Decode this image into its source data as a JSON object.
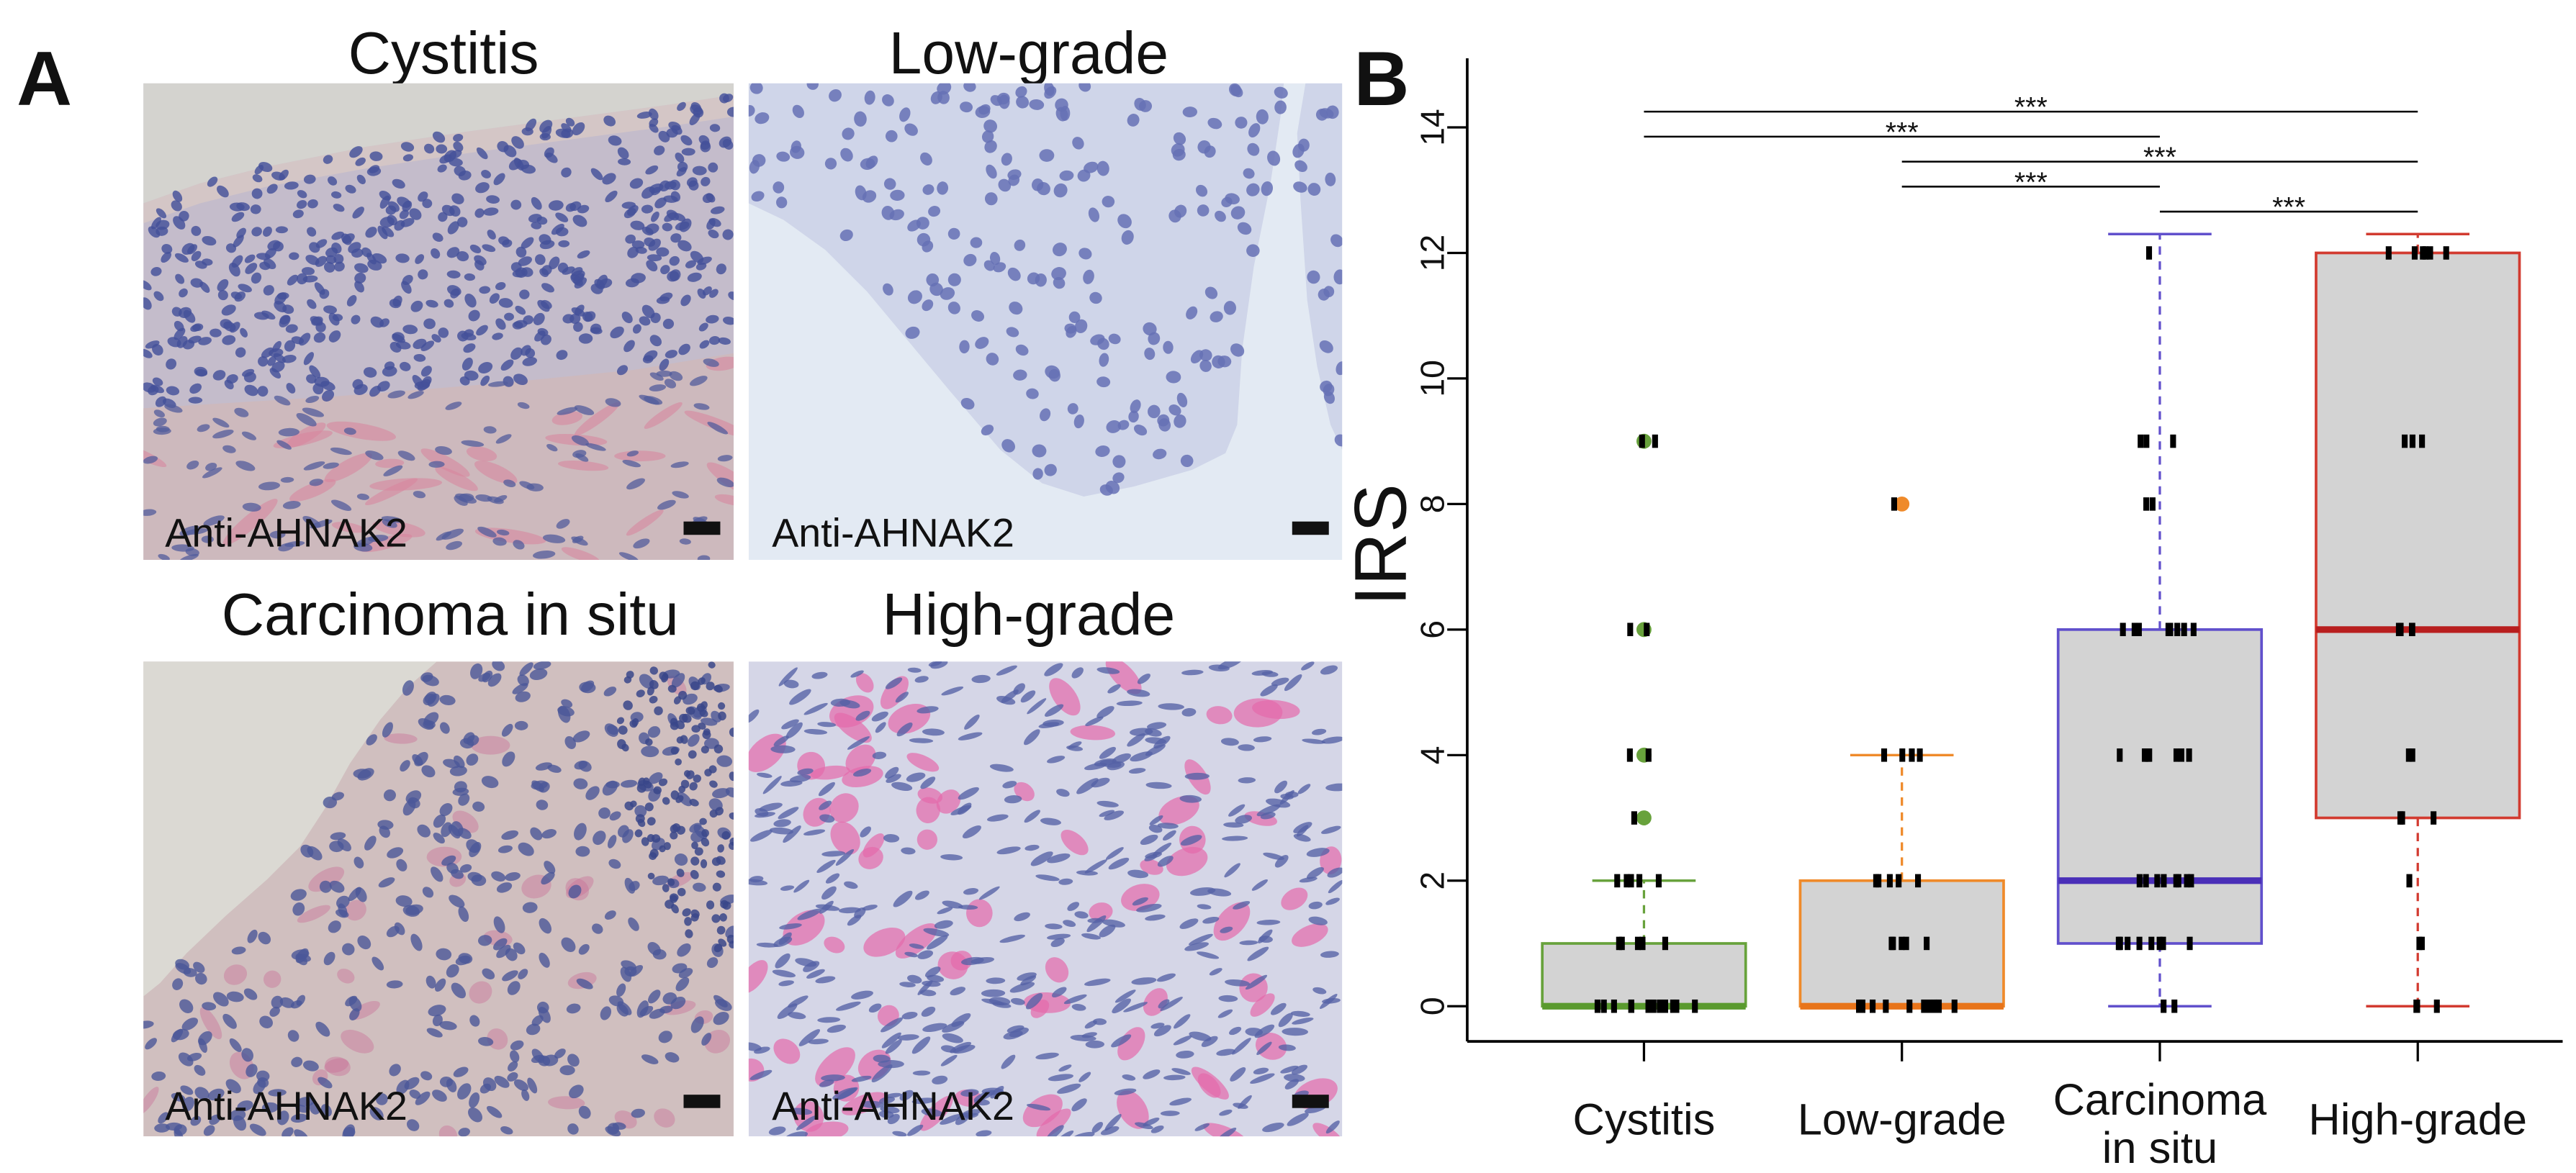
{
  "figure": {
    "panel_a": {
      "label": "A",
      "images": [
        {
          "title": "Cystitis",
          "stain_label": "Anti-AHNAK2"
        },
        {
          "title": "Low-grade",
          "stain_label": "Anti-AHNAK2"
        },
        {
          "title": "Carcinoma in situ",
          "stain_label": "Anti-AHNAK2"
        },
        {
          "title": "High-grade",
          "stain_label": "Anti-AHNAK2"
        }
      ]
    },
    "panel_b": {
      "label": "B"
    }
  },
  "chart_data": {
    "type": "boxplot",
    "ylabel": "IRS",
    "ylim": [
      -0.56,
      15.1
    ],
    "yticks": [
      0,
      2,
      4,
      6,
      8,
      10,
      12,
      14
    ],
    "grid": false,
    "box_fill": "#d3d3d3",
    "point_color": "#000000",
    "series": [
      {
        "name": "Cystitis",
        "label_lines": [
          "Cystitis"
        ],
        "color": "#68a23c",
        "median_color": "#5a9a2e",
        "q1": 0,
        "median": 0,
        "q3": 1,
        "whisker_low": 0,
        "whisker_high": 2,
        "outliers": [
          3,
          4,
          6,
          9
        ],
        "points": [
          0,
          0,
          0,
          0,
          0,
          0,
          0,
          0,
          0,
          0,
          0,
          0,
          1,
          1,
          1,
          1,
          1,
          2,
          2,
          2,
          2,
          2,
          3,
          4,
          4,
          6,
          6,
          9,
          9
        ]
      },
      {
        "name": "Low-grade",
        "label_lines": [
          "Low-grade"
        ],
        "color": "#ef8a2a",
        "median_color": "#e8741a",
        "q1": 0,
        "median": 0,
        "q3": 2,
        "whisker_low": 0,
        "whisker_high": 4,
        "outliers": [
          8
        ],
        "points": [
          0,
          0,
          0,
          0,
          0,
          0,
          0,
          0,
          0,
          0,
          0,
          0,
          1,
          1,
          1,
          1,
          1,
          2,
          2,
          2,
          2,
          2,
          4,
          4,
          4,
          4,
          8
        ]
      },
      {
        "name": "Carcinoma in situ",
        "label_lines": [
          "Carcinoma",
          "in situ"
        ],
        "color": "#6150cc",
        "median_color": "#4a2fb8",
        "q1": 1,
        "median": 2,
        "q3": 6,
        "whisker_low": 0,
        "whisker_high": 12.3,
        "outliers": [],
        "points": [
          0,
          0,
          1,
          1,
          1,
          1,
          1,
          1,
          1,
          1,
          2,
          2,
          2,
          2,
          2,
          2,
          2,
          2,
          4,
          4,
          4,
          4,
          4,
          4,
          4,
          4,
          6,
          6,
          6,
          6,
          6,
          6,
          6,
          6,
          8,
          8,
          9,
          9,
          9,
          12
        ]
      },
      {
        "name": "High-grade",
        "label_lines": [
          "High-grade"
        ],
        "color": "#d23b30",
        "median_color": "#b81e1e",
        "q1": 3,
        "median": 6,
        "q3": 12,
        "whisker_low": 0,
        "whisker_high": 12.3,
        "outliers": [],
        "points": [
          0,
          0,
          0,
          1,
          1,
          2,
          3,
          3,
          3,
          4,
          4,
          6,
          6,
          6,
          6,
          9,
          9,
          9,
          12,
          12,
          12,
          12,
          12,
          12
        ]
      }
    ],
    "comparisons": [
      {
        "from": "Cystitis",
        "to": "High-grade",
        "label": "***"
      },
      {
        "from": "Cystitis",
        "to": "Carcinoma in situ",
        "label": "***"
      },
      {
        "from": "Low-grade",
        "to": "High-grade",
        "label": "***"
      },
      {
        "from": "Low-grade",
        "to": "Carcinoma in situ",
        "label": "***"
      },
      {
        "from": "Carcinoma in situ",
        "to": "High-grade",
        "label": "***"
      }
    ]
  }
}
